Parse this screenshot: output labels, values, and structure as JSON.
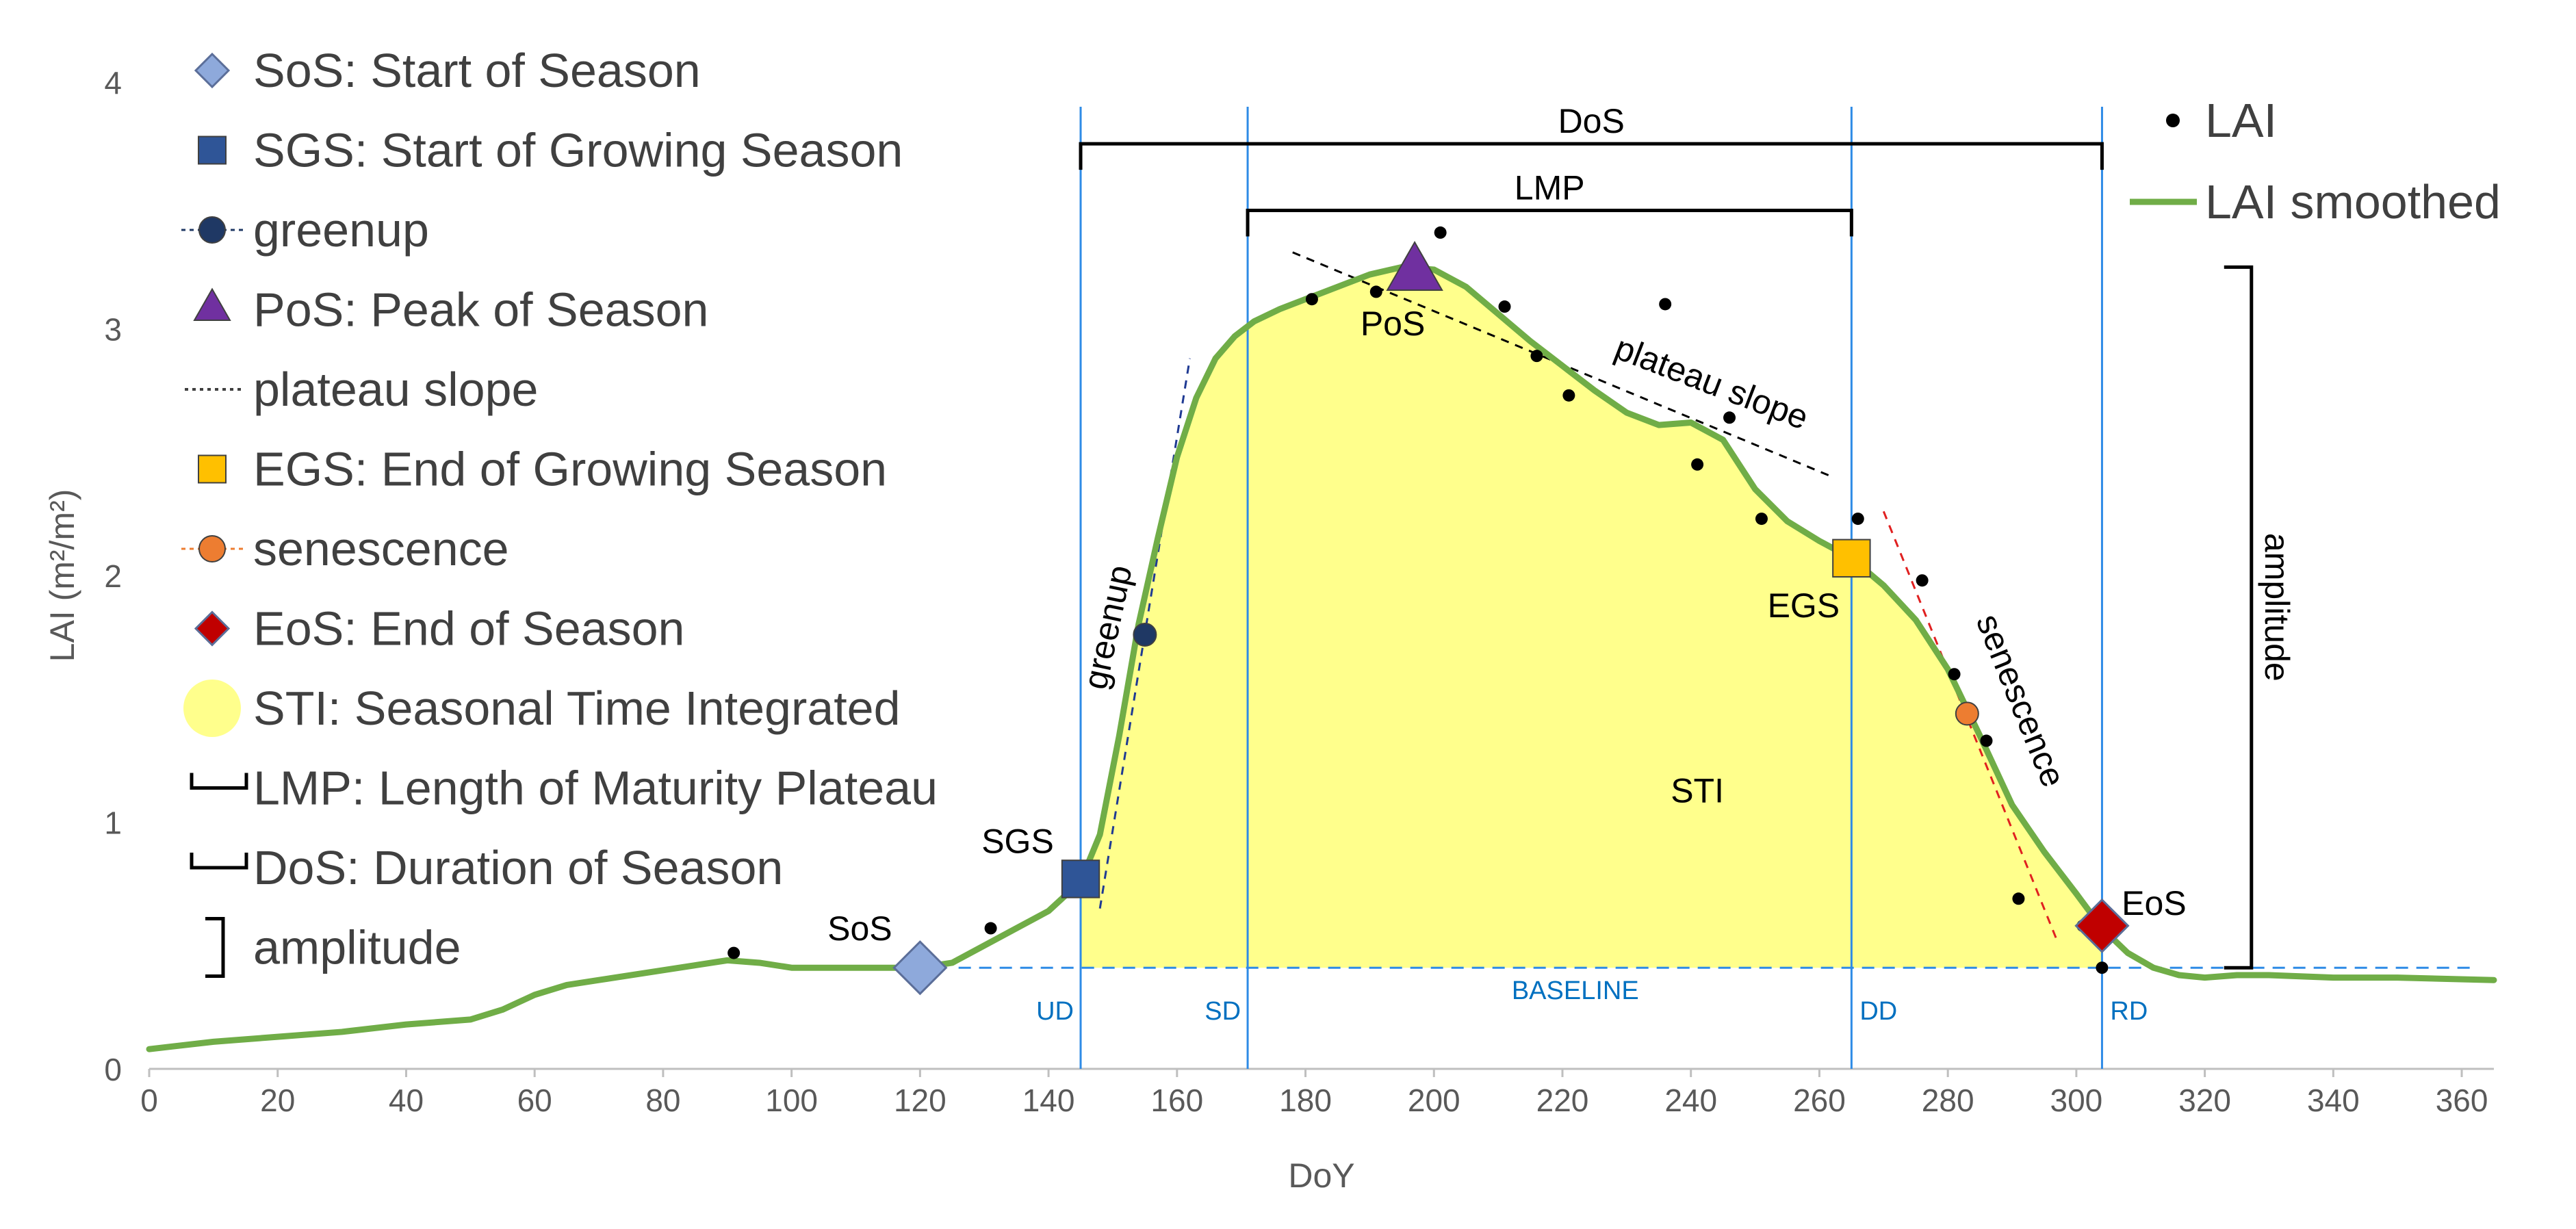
{
  "chart_data": {
    "type": "line",
    "xlabel": "DoY",
    "ylabel": "LAI (m²/m²)",
    "xlim": [
      0,
      365
    ],
    "ylim": [
      0,
      4
    ],
    "xticks": [
      0,
      20,
      40,
      60,
      80,
      100,
      120,
      140,
      160,
      180,
      200,
      220,
      240,
      260,
      280,
      300,
      320,
      340,
      360
    ],
    "yticks": [
      0,
      1,
      2,
      3,
      4
    ],
    "colors": {
      "smoothed": "#70AD47",
      "fill": "#FFFF8C",
      "vline": "#2E8BE6",
      "baseline": "#2E8BE6",
      "greenup_line": "#1F3A93",
      "senescence_line": "#E02020",
      "sos": "#8EA9DB",
      "sgs": "#2F5597",
      "greenup": "#1F3864",
      "pos": "#7030A0",
      "egs": "#FFC000",
      "senescence": "#ED7D31",
      "eos": "#C00000",
      "sti": "#FFFF8C"
    },
    "series": [
      {
        "name": "LAI",
        "type": "scatter",
        "x": [
          91,
          131,
          155,
          181,
          191,
          201,
          211,
          216,
          221,
          236,
          241,
          246,
          251,
          266,
          276,
          281,
          286,
          291,
          301,
          304
        ],
        "y": [
          0.47,
          0.57,
          1.75,
          3.12,
          3.15,
          3.39,
          3.09,
          2.89,
          2.73,
          3.1,
          2.45,
          2.64,
          2.23,
          2.23,
          1.98,
          1.6,
          1.33,
          0.69,
          0.58,
          0.41
        ]
      },
      {
        "name": "LAI smoothed",
        "type": "line",
        "x": [
          0,
          10,
          20,
          30,
          40,
          50,
          55,
          60,
          65,
          70,
          80,
          90,
          95,
          100,
          110,
          120,
          125,
          130,
          135,
          140,
          145,
          148,
          151,
          154,
          157,
          160,
          163,
          166,
          169,
          172,
          176,
          180,
          185,
          190,
          195,
          200,
          205,
          210,
          215,
          220,
          225,
          230,
          235,
          240,
          245,
          250,
          255,
          260,
          265,
          270,
          275,
          280,
          285,
          290,
          295,
          300,
          304,
          308,
          312,
          316,
          320,
          325,
          330,
          340,
          350,
          365
        ],
        "y": [
          0.08,
          0.11,
          0.13,
          0.15,
          0.18,
          0.2,
          0.24,
          0.3,
          0.34,
          0.36,
          0.4,
          0.44,
          0.43,
          0.41,
          0.41,
          0.41,
          0.43,
          0.5,
          0.57,
          0.64,
          0.76,
          0.95,
          1.35,
          1.8,
          2.15,
          2.48,
          2.72,
          2.88,
          2.97,
          3.03,
          3.08,
          3.12,
          3.17,
          3.22,
          3.25,
          3.24,
          3.17,
          3.06,
          2.95,
          2.85,
          2.75,
          2.66,
          2.61,
          2.62,
          2.55,
          2.35,
          2.22,
          2.14,
          2.07,
          1.96,
          1.82,
          1.62,
          1.35,
          1.07,
          0.88,
          0.71,
          0.57,
          0.47,
          0.41,
          0.38,
          0.37,
          0.38,
          0.38,
          0.37,
          0.37,
          0.36
        ]
      }
    ],
    "baseline": 0.41,
    "markers": [
      {
        "name": "SoS",
        "x": 120,
        "y": 0.41,
        "shape": "diamond",
        "color": "#8EA9DB",
        "label": "SoS"
      },
      {
        "name": "SGS",
        "x": 145,
        "y": 0.77,
        "shape": "square",
        "color": "#2F5597",
        "label": "SGS"
      },
      {
        "name": "greenup",
        "x": 155,
        "y": 1.76,
        "shape": "circle",
        "color": "#1F3864",
        "label": ""
      },
      {
        "name": "PoS",
        "x": 197,
        "y": 3.24,
        "shape": "triangle",
        "color": "#7030A0",
        "label": "PoS"
      },
      {
        "name": "EGS",
        "x": 265,
        "y": 2.07,
        "shape": "square",
        "color": "#FFC000",
        "label": "EGS"
      },
      {
        "name": "senescence",
        "x": 283,
        "y": 1.44,
        "shape": "circle",
        "color": "#ED7D31",
        "label": ""
      },
      {
        "name": "EoS",
        "x": 304,
        "y": 0.58,
        "shape": "diamond",
        "color": "#C00000",
        "label": "EoS"
      }
    ],
    "vlines": [
      {
        "x": 145,
        "label": "UD"
      },
      {
        "x": 171,
        "label": "SD"
      },
      {
        "x": 265,
        "label": "DD"
      },
      {
        "x": 304,
        "label": "RD"
      }
    ],
    "slopes": [
      {
        "name": "greenup",
        "x1": 148,
        "y1": 0.65,
        "x2": 162,
        "y2": 2.88,
        "label": "greenup"
      },
      {
        "name": "plateau",
        "x1": 178,
        "y1": 3.31,
        "x2": 262,
        "y2": 2.4,
        "label": "plateau slope"
      },
      {
        "name": "senescence",
        "x1": 270,
        "y1": 2.26,
        "x2": 297,
        "y2": 0.52,
        "label": "senescence"
      }
    ],
    "spans": [
      {
        "name": "DoS",
        "x1": 145,
        "x2": 304,
        "y": 3.75,
        "label": "DoS"
      },
      {
        "name": "LMP",
        "x1": 171,
        "x2": 265,
        "y": 3.48,
        "label": "LMP"
      }
    ],
    "amplitude": {
      "x": 323,
      "y1": 0.41,
      "y2": 3.25,
      "label": "amplitude"
    },
    "sti_label": "STI",
    "baseline_label": "BASELINE",
    "legend_left": [
      {
        "symbol": "diamond",
        "color": "#8EA9DB",
        "label": "SoS: Start of Season"
      },
      {
        "symbol": "square",
        "color": "#2F5597",
        "label": "SGS: Start of Growing Season"
      },
      {
        "symbol": "circle-line",
        "color": "#1F3864",
        "label": "greenup"
      },
      {
        "symbol": "triangle",
        "color": "#7030A0",
        "label": "PoS: Peak of Season"
      },
      {
        "symbol": "dotted",
        "color": "#404040",
        "label": "plateau slope"
      },
      {
        "symbol": "square",
        "color": "#FFC000",
        "label": "EGS: End of Growing Season"
      },
      {
        "symbol": "circle-line",
        "color": "#ED7D31",
        "label": "senescence"
      },
      {
        "symbol": "diamond",
        "color": "#C00000",
        "label": "EoS: End of Season"
      },
      {
        "symbol": "big-circle",
        "color": "#FFFF8C",
        "label": "STI: Seasonal Time Integrated"
      },
      {
        "symbol": "bracket-h",
        "color": "#000000",
        "label": "LMP: Length of Maturity Plateau"
      },
      {
        "symbol": "bracket-h",
        "color": "#000000",
        "label": "DoS: Duration of Season"
      },
      {
        "symbol": "bracket-v",
        "color": "#000000",
        "label": "amplitude"
      }
    ],
    "legend_right": [
      {
        "symbol": "dot",
        "color": "#000000",
        "label": "LAI"
      },
      {
        "symbol": "line",
        "color": "#70AD47",
        "label": "LAI smoothed"
      }
    ]
  }
}
